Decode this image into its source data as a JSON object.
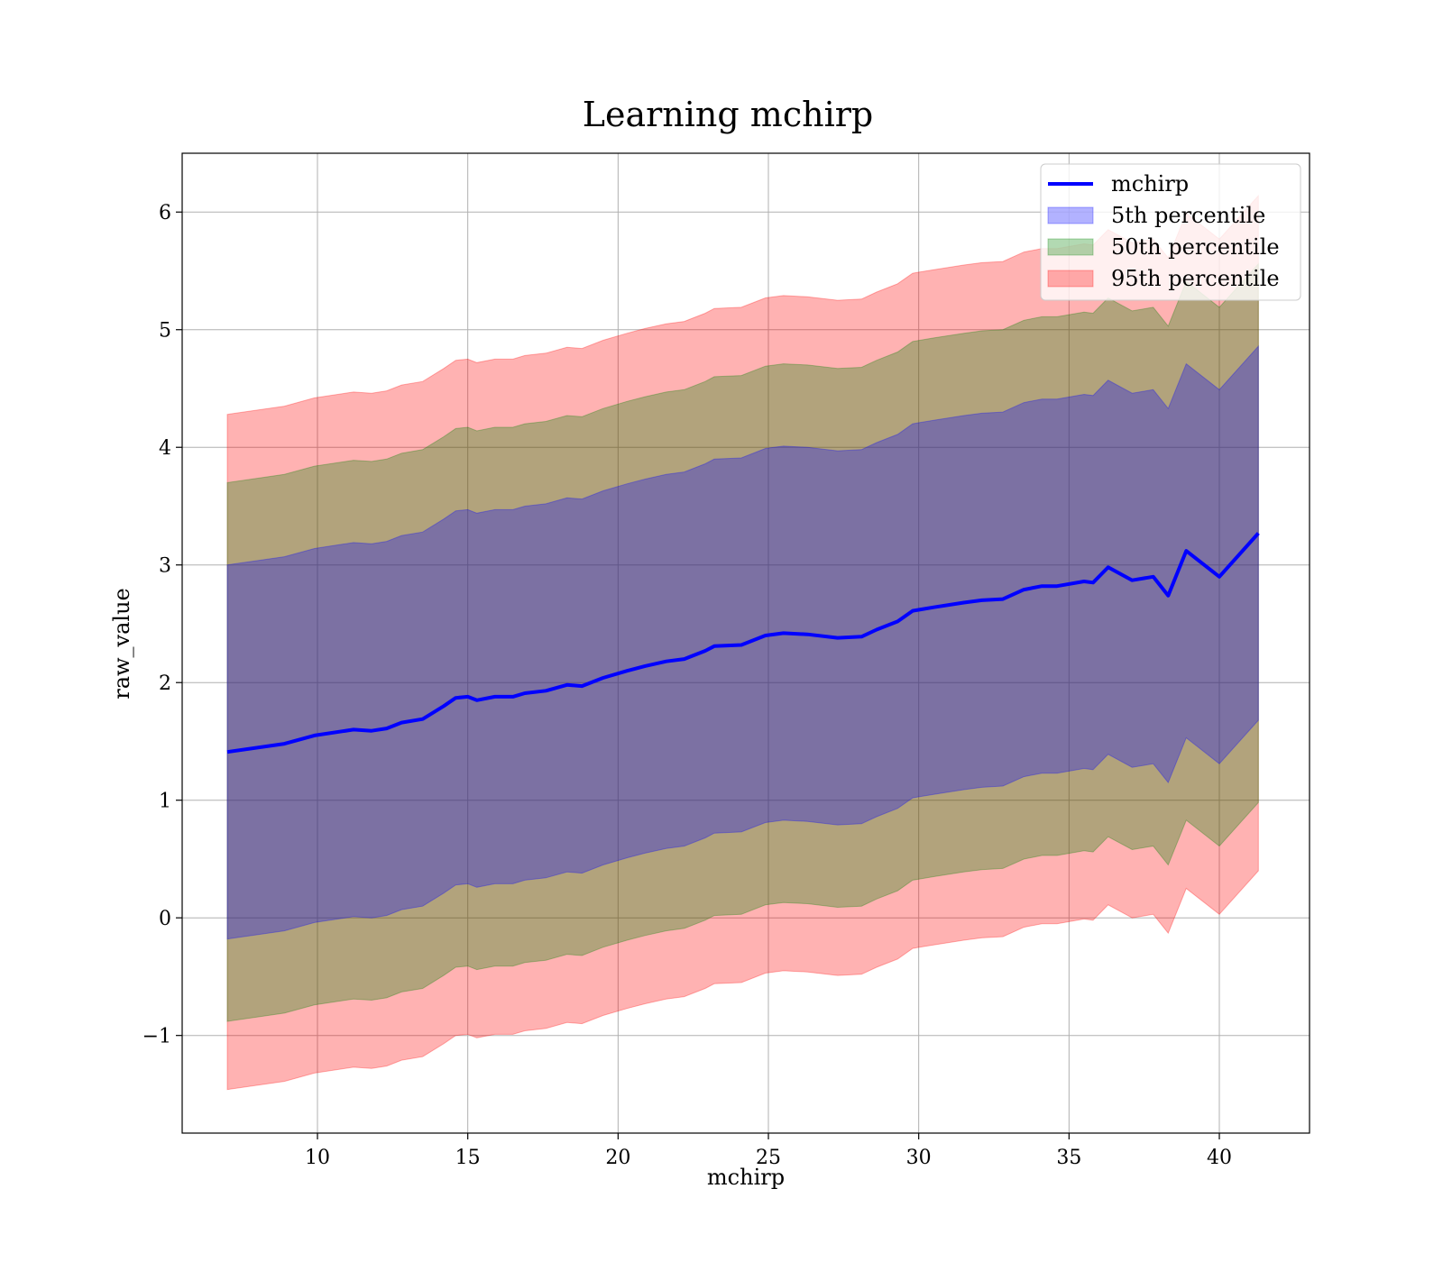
{
  "chart_data": {
    "type": "area",
    "title": "Learning mchirp",
    "xlabel": "mchirp",
    "ylabel": "raw_value",
    "xlim": [
      5.5,
      43.0
    ],
    "ylim": [
      -1.83,
      6.5
    ],
    "xticks": [
      10,
      15,
      20,
      25,
      30,
      35,
      40
    ],
    "yticks": [
      -1,
      0,
      1,
      2,
      3,
      4,
      5,
      6
    ],
    "xtick_labels": [
      "10",
      "15",
      "20",
      "25",
      "30",
      "35",
      "40"
    ],
    "ytick_labels": [
      "−1",
      "0",
      "1",
      "2",
      "3",
      "4",
      "5",
      "6"
    ],
    "grid": true,
    "legend_position": "top-right",
    "x": [
      7.0,
      8.9,
      9.9,
      11.2,
      11.8,
      12.3,
      12.8,
      13.5,
      14.2,
      14.6,
      15.0,
      15.3,
      15.9,
      16.5,
      16.9,
      17.6,
      18.3,
      18.8,
      19.5,
      20.3,
      20.9,
      21.6,
      22.2,
      22.9,
      23.2,
      24.1,
      24.9,
      25.5,
      26.3,
      27.3,
      28.1,
      28.6,
      29.3,
      29.8,
      30.5,
      31.5,
      32.1,
      32.8,
      33.5,
      34.1,
      34.6,
      35.5,
      35.8,
      36.3,
      37.1,
      37.8,
      38.3,
      38.9,
      40.0,
      41.3
    ],
    "series": [
      {
        "name": "mchirp",
        "type": "line",
        "color": "#0000ff",
        "values": [
          1.41,
          1.48,
          1.55,
          1.6,
          1.59,
          1.61,
          1.66,
          1.69,
          1.8,
          1.87,
          1.88,
          1.85,
          1.88,
          1.88,
          1.91,
          1.93,
          1.98,
          1.97,
          2.04,
          2.1,
          2.14,
          2.18,
          2.2,
          2.27,
          2.31,
          2.32,
          2.4,
          2.42,
          2.41,
          2.38,
          2.39,
          2.45,
          2.52,
          2.61,
          2.64,
          2.68,
          2.7,
          2.71,
          2.79,
          2.82,
          2.82,
          2.86,
          2.85,
          2.98,
          2.87,
          2.9,
          2.74,
          3.12,
          2.9,
          3.27
        ]
      },
      {
        "name": "5th percentile",
        "type": "band",
        "color": "#0000ff",
        "band_width": 3.18
      },
      {
        "name": "50th percentile",
        "type": "band",
        "color": "#008000",
        "band_width": 4.58
      },
      {
        "name": "95th percentile",
        "type": "band",
        "color": "#ff0000",
        "band_width": 5.74
      }
    ]
  }
}
